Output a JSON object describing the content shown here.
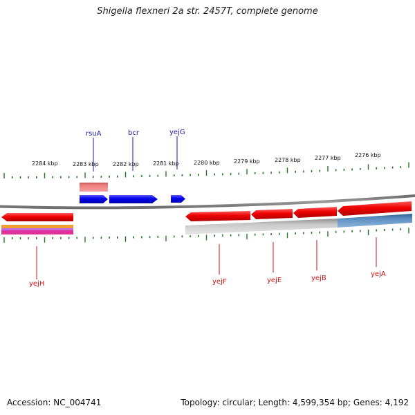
{
  "title": "Shigella flexneri 2a str. 2457T, complete genome",
  "footer": {
    "accession": "Accession: NC_004741",
    "stats": "Topology: circular; Length: 4,599,354 bp; Genes: 4,192"
  },
  "scale": {
    "ticks": [
      "2284 kbp",
      "2283 kbp",
      "2282 kbp",
      "2281 kbp",
      "2280 kbp",
      "2279 kbp",
      "2278 kbp",
      "2277 kbp",
      "2276 kbp"
    ]
  },
  "genes": {
    "forward": [
      "rsuA",
      "bcr",
      "yejG"
    ],
    "reverse": [
      "yejH",
      "yejF",
      "yejE",
      "yejB",
      "yejA"
    ]
  },
  "colors": {
    "backbone": "#808080",
    "forward_cds": "#0000ee",
    "reverse_cds": "#ee0000",
    "gene_bar": "#e0696b",
    "gray_feature": "#b4b4b4",
    "steelblue_feature": "#4a7fb0",
    "orange_feature": "#f0a030",
    "magenta_feature": "#e0309a",
    "tick": "#1f7a1f",
    "forward_label": "#1a1aa6",
    "reverse_label": "#cc1111"
  }
}
